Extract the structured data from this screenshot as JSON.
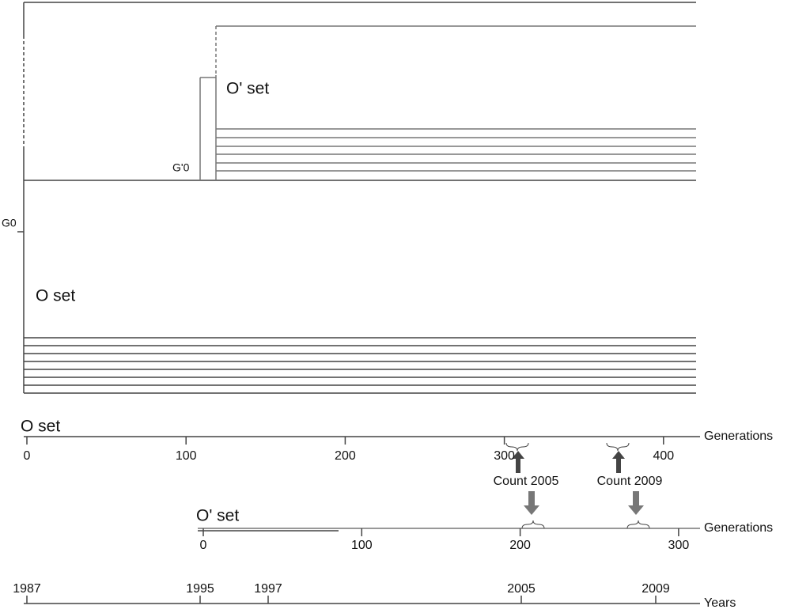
{
  "tree": {
    "root_label": "G0",
    "sub_root_label": "G'0",
    "o_prime_label": "O' set",
    "o_label": "O set"
  },
  "axes": [
    {
      "title": "O set",
      "unit": "Generations",
      "ticks": [
        0,
        100,
        200,
        300,
        400
      ]
    },
    {
      "title": "O' set",
      "unit": "Generations",
      "ticks": [
        0,
        100,
        200,
        300
      ]
    },
    {
      "unit": "Years",
      "ticks": [
        1987,
        1995,
        1997,
        2005,
        2009
      ]
    }
  ],
  "counts": [
    "Count 2005",
    "Count 2009"
  ]
}
